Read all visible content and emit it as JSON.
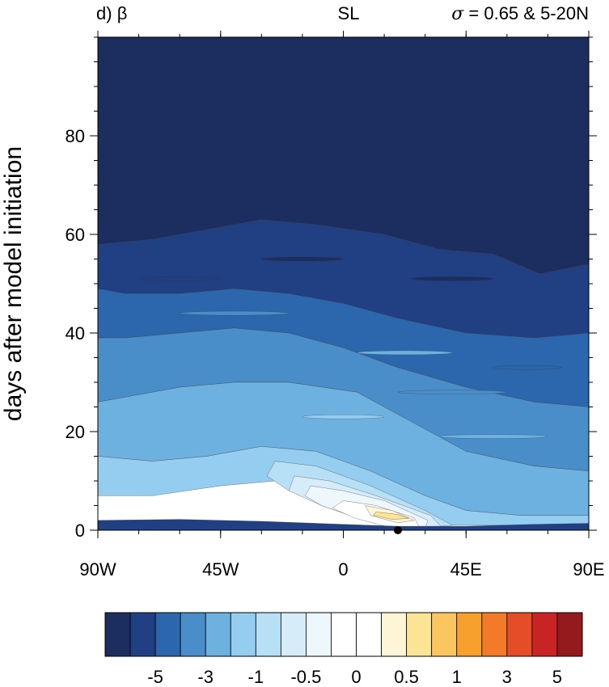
{
  "panel": {
    "label": "d)",
    "symbol": "β",
    "center": "SL",
    "right_symbol": "σ",
    "right_text": " = 0.65 & 5-20N"
  },
  "chart_data": {
    "type": "heatmap",
    "title": "",
    "xlabel": "",
    "ylabel": "days after model initiation",
    "x_range": [
      -90,
      90
    ],
    "y_range": [
      0,
      100
    ],
    "x_ticks": [
      {
        "value": -90,
        "label": "90W"
      },
      {
        "value": -45,
        "label": "45W"
      },
      {
        "value": 0,
        "label": "0"
      },
      {
        "value": 45,
        "label": "45E"
      },
      {
        "value": 90,
        "label": "90E"
      }
    ],
    "y_ticks": [
      {
        "value": 0,
        "label": "0"
      },
      {
        "value": 20,
        "label": "20"
      },
      {
        "value": 40,
        "label": "40"
      },
      {
        "value": 60,
        "label": "60"
      },
      {
        "value": 80,
        "label": "80"
      }
    ],
    "marker": {
      "lon": 20,
      "day": 0
    },
    "colorbar": {
      "colors": [
        "#1c2d60",
        "#213f83",
        "#2c66ad",
        "#4a8ec9",
        "#6cb1e0",
        "#95cdf0",
        "#b7e0f6",
        "#d6ecf8",
        "#eef7fc",
        "#ffffff",
        "#ffffff",
        "#fdf5d6",
        "#fbe493",
        "#fbc55f",
        "#f8a02e",
        "#f27a28",
        "#e54d28",
        "#c82425",
        "#951a1d"
      ],
      "tick_labels": [
        "-5",
        "-3",
        "-1",
        "-0.5",
        "0",
        "0.5",
        "1",
        "3",
        "5"
      ],
      "tick_boundaries": [
        2,
        4,
        6,
        8,
        10,
        12,
        14,
        16,
        18
      ]
    },
    "bands": [
      {
        "level": "-1",
        "color": "#1c2d60",
        "days": [
          [
            -90,
            100
          ],
          [
            90,
            100
          ],
          [
            90,
            54
          ],
          [
            72,
            52
          ],
          [
            55,
            56
          ],
          [
            35,
            57
          ],
          [
            15,
            60
          ],
          [
            -10,
            62
          ],
          [
            -30,
            63
          ],
          [
            -50,
            61
          ],
          [
            -70,
            59
          ],
          [
            -90,
            58
          ]
        ]
      },
      {
        "level": "-2",
        "color": "#213f83",
        "days": [
          [
            -90,
            58
          ],
          [
            -70,
            59
          ],
          [
            -50,
            61
          ],
          [
            -30,
            63
          ],
          [
            -10,
            62
          ],
          [
            15,
            60
          ],
          [
            35,
            57
          ],
          [
            55,
            56
          ],
          [
            72,
            52
          ],
          [
            90,
            54
          ],
          [
            90,
            40
          ],
          [
            70,
            39
          ],
          [
            45,
            40
          ],
          [
            20,
            43
          ],
          [
            0,
            46
          ],
          [
            -20,
            48
          ],
          [
            -40,
            49
          ],
          [
            -60,
            48
          ],
          [
            -80,
            48
          ],
          [
            -90,
            49
          ]
        ]
      },
      {
        "level": "-3",
        "color": "#2c66ad",
        "days": [
          [
            -90,
            49
          ],
          [
            -80,
            48
          ],
          [
            -60,
            48
          ],
          [
            -40,
            49
          ],
          [
            -20,
            48
          ],
          [
            0,
            46
          ],
          [
            20,
            43
          ],
          [
            45,
            40
          ],
          [
            70,
            39
          ],
          [
            90,
            40
          ],
          [
            90,
            25
          ],
          [
            70,
            26
          ],
          [
            45,
            29
          ],
          [
            20,
            33
          ],
          [
            0,
            37
          ],
          [
            -20,
            40
          ],
          [
            -40,
            41
          ],
          [
            -60,
            40
          ],
          [
            -80,
            39
          ],
          [
            -90,
            39
          ]
        ]
      },
      {
        "level": "-4",
        "color": "#4a8ec9",
        "days": [
          [
            -90,
            39
          ],
          [
            -80,
            39
          ],
          [
            -60,
            40
          ],
          [
            -40,
            41
          ],
          [
            -20,
            40
          ],
          [
            0,
            37
          ],
          [
            20,
            33
          ],
          [
            45,
            29
          ],
          [
            70,
            26
          ],
          [
            90,
            25
          ],
          [
            90,
            12
          ],
          [
            70,
            13
          ],
          [
            45,
            16
          ],
          [
            25,
            22
          ],
          [
            5,
            28
          ],
          [
            -20,
            30
          ],
          [
            -40,
            30
          ],
          [
            -60,
            29
          ],
          [
            -80,
            27
          ],
          [
            -90,
            26
          ]
        ]
      },
      {
        "level": "-5",
        "color": "#6cb1e0",
        "days": [
          [
            -90,
            26
          ],
          [
            -80,
            27
          ],
          [
            -60,
            29
          ],
          [
            -40,
            30
          ],
          [
            -20,
            30
          ],
          [
            5,
            28
          ],
          [
            25,
            22
          ],
          [
            45,
            16
          ],
          [
            70,
            13
          ],
          [
            90,
            12
          ],
          [
            90,
            3
          ],
          [
            65,
            3
          ],
          [
            45,
            4
          ],
          [
            30,
            7
          ],
          [
            10,
            12
          ],
          [
            -10,
            16
          ],
          [
            -30,
            17
          ],
          [
            -50,
            15
          ],
          [
            -70,
            14
          ],
          [
            -90,
            15
          ]
        ]
      },
      {
        "level": "-6",
        "color": "#95cdf0",
        "days": [
          [
            -90,
            15
          ],
          [
            -70,
            14
          ],
          [
            -50,
            15
          ],
          [
            -30,
            17
          ],
          [
            -10,
            16
          ],
          [
            10,
            12
          ],
          [
            30,
            7
          ],
          [
            45,
            4
          ],
          [
            65,
            3
          ],
          [
            90,
            3
          ],
          [
            90,
            1
          ],
          [
            60,
            1
          ],
          [
            40,
            1
          ],
          [
            25,
            1
          ],
          [
            10,
            3
          ],
          [
            -5,
            7
          ],
          [
            -25,
            10
          ],
          [
            -45,
            9
          ],
          [
            -70,
            7
          ],
          [
            -90,
            7
          ]
        ]
      },
      {
        "level": "-7",
        "color": "#b7e0f6",
        "days": [
          [
            -25,
            14
          ],
          [
            -10,
            13
          ],
          [
            10,
            9
          ],
          [
            30,
            4
          ],
          [
            40,
            1
          ],
          [
            25,
            0.3
          ],
          [
            10,
            2
          ],
          [
            -5,
            5
          ],
          [
            -20,
            8
          ],
          [
            -28,
            11
          ]
        ]
      },
      {
        "level": "-8",
        "color": "#d6ecf8",
        "days": [
          [
            -18,
            11
          ],
          [
            -5,
            10
          ],
          [
            12,
            7
          ],
          [
            32,
            3
          ],
          [
            36,
            0.6
          ],
          [
            22,
            0.3
          ],
          [
            8,
            2
          ],
          [
            -8,
            5
          ],
          [
            -20,
            8
          ]
        ]
      },
      {
        "level": "-9",
        "color": "#eef7fc",
        "days": [
          [
            -12,
            9
          ],
          [
            0,
            8
          ],
          [
            15,
            6
          ],
          [
            31,
            2
          ],
          [
            30,
            0.4
          ],
          [
            18,
            0.5
          ],
          [
            5,
            2.5
          ],
          [
            -8,
            5
          ],
          [
            -14,
            7
          ]
        ]
      },
      {
        "level": "0",
        "color": "#ffffff",
        "days": [
          [
            0,
            6
          ],
          [
            12,
            5
          ],
          [
            26,
            2.5
          ],
          [
            28,
            0.5
          ],
          [
            16,
            0.7
          ],
          [
            4,
            2.5
          ],
          [
            -4,
            4.5
          ]
        ]
      },
      {
        "level": "0.5",
        "color": "#fdf5d6",
        "days": [
          [
            8,
            5
          ],
          [
            18,
            4
          ],
          [
            26,
            2
          ],
          [
            20,
            1.5
          ],
          [
            10,
            3
          ]
        ]
      },
      {
        "level": "1",
        "color": "#fbe493",
        "days": [
          [
            12,
            3.7
          ],
          [
            20,
            3.2
          ],
          [
            24,
            2.4
          ],
          [
            18,
            2.2
          ],
          [
            11,
            3
          ]
        ]
      },
      {
        "level": "-1",
        "color": "#213f83",
        "days": [
          [
            -90,
            2
          ],
          [
            -60,
            2.2
          ],
          [
            -30,
            1.8
          ],
          [
            0,
            1.2
          ],
          [
            20,
            0.8
          ],
          [
            45,
            0.8
          ],
          [
            70,
            1.2
          ],
          [
            90,
            1.4
          ],
          [
            90,
            0
          ],
          [
            -90,
            0
          ]
        ]
      }
    ],
    "streaks": [
      {
        "lon_from": -60,
        "lon_to": -20,
        "day": 44,
        "color": "#4a8ec9"
      },
      {
        "lon_from": 5,
        "lon_to": 40,
        "day": 36,
        "color": "#6cb1e0"
      },
      {
        "lon_from": 20,
        "lon_to": 60,
        "day": 28,
        "color": "#4a8ec9"
      },
      {
        "lon_from": -15,
        "lon_to": 15,
        "day": 23,
        "color": "#95cdf0"
      },
      {
        "lon_from": 35,
        "lon_to": 75,
        "day": 19,
        "color": "#6cb1e0"
      },
      {
        "lon_from": 25,
        "lon_to": 55,
        "day": 51,
        "color": "#1c2d60"
      },
      {
        "lon_from": -30,
        "lon_to": 0,
        "day": 55,
        "color": "#1c2d60"
      },
      {
        "lon_from": -75,
        "lon_to": -45,
        "day": 51,
        "color": "#213f83"
      },
      {
        "lon_from": 55,
        "lon_to": 80,
        "day": 33,
        "color": "#2c66ad"
      }
    ]
  }
}
